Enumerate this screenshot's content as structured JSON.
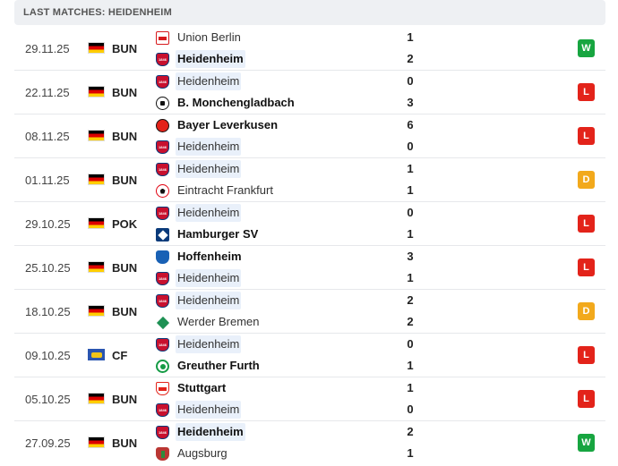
{
  "header": {
    "title": "LAST MATCHES: HEIDENHEIM"
  },
  "matches": [
    {
      "date": "29.11.25",
      "flag": "de",
      "competition": "BUN",
      "home": {
        "name": "Union Berlin",
        "crest": "union-berlin-crest",
        "bold": false,
        "highlight": false,
        "score": "1"
      },
      "away": {
        "name": "Heidenheim",
        "crest": "heidenheim-crest",
        "bold": true,
        "highlight": true,
        "score": "2"
      },
      "result": "W"
    },
    {
      "date": "22.11.25",
      "flag": "de",
      "competition": "BUN",
      "home": {
        "name": "Heidenheim",
        "crest": "heidenheim-crest",
        "bold": false,
        "highlight": true,
        "score": "0"
      },
      "away": {
        "name": "B. Monchengladbach",
        "crest": "gladbach-crest",
        "bold": true,
        "highlight": false,
        "score": "3"
      },
      "result": "L"
    },
    {
      "date": "08.11.25",
      "flag": "de",
      "competition": "BUN",
      "home": {
        "name": "Bayer Leverkusen",
        "crest": "leverkusen-crest",
        "bold": true,
        "highlight": false,
        "score": "6"
      },
      "away": {
        "name": "Heidenheim",
        "crest": "heidenheim-crest",
        "bold": false,
        "highlight": true,
        "score": "0"
      },
      "result": "L"
    },
    {
      "date": "01.11.25",
      "flag": "de",
      "competition": "BUN",
      "home": {
        "name": "Heidenheim",
        "crest": "heidenheim-crest",
        "bold": false,
        "highlight": true,
        "score": "1"
      },
      "away": {
        "name": "Eintracht Frankfurt",
        "crest": "frankfurt-crest",
        "bold": false,
        "highlight": false,
        "score": "1"
      },
      "result": "D"
    },
    {
      "date": "29.10.25",
      "flag": "de",
      "competition": "POK",
      "home": {
        "name": "Heidenheim",
        "crest": "heidenheim-crest",
        "bold": false,
        "highlight": true,
        "score": "0"
      },
      "away": {
        "name": "Hamburger SV",
        "crest": "hamburg-crest",
        "bold": true,
        "highlight": false,
        "score": "1"
      },
      "result": "L"
    },
    {
      "date": "25.10.25",
      "flag": "de",
      "competition": "BUN",
      "home": {
        "name": "Hoffenheim",
        "crest": "hoffenheim-crest",
        "bold": true,
        "highlight": false,
        "score": "3"
      },
      "away": {
        "name": "Heidenheim",
        "crest": "heidenheim-crest",
        "bold": false,
        "highlight": true,
        "score": "1"
      },
      "result": "L"
    },
    {
      "date": "18.10.25",
      "flag": "de",
      "competition": "BUN",
      "home": {
        "name": "Heidenheim",
        "crest": "heidenheim-crest",
        "bold": false,
        "highlight": true,
        "score": "2"
      },
      "away": {
        "name": "Werder Bremen",
        "crest": "werder-crest",
        "bold": false,
        "highlight": false,
        "score": "2"
      },
      "result": "D"
    },
    {
      "date": "09.10.25",
      "flag": "cf",
      "competition": "CF",
      "home": {
        "name": "Heidenheim",
        "crest": "heidenheim-crest",
        "bold": false,
        "highlight": true,
        "score": "0"
      },
      "away": {
        "name": "Greuther Furth",
        "crest": "furth-crest",
        "bold": true,
        "highlight": false,
        "score": "1"
      },
      "result": "L"
    },
    {
      "date": "05.10.25",
      "flag": "de",
      "competition": "BUN",
      "home": {
        "name": "Stuttgart",
        "crest": "stuttgart-crest",
        "bold": true,
        "highlight": false,
        "score": "1"
      },
      "away": {
        "name": "Heidenheim",
        "crest": "heidenheim-crest",
        "bold": false,
        "highlight": true,
        "score": "0"
      },
      "result": "L"
    },
    {
      "date": "27.09.25",
      "flag": "de",
      "competition": "BUN",
      "home": {
        "name": "Heidenheim",
        "crest": "heidenheim-crest",
        "bold": true,
        "highlight": true,
        "score": "2"
      },
      "away": {
        "name": "Augsburg",
        "crest": "augsburg-crest",
        "bold": false,
        "highlight": false,
        "score": "1"
      },
      "result": "W"
    }
  ]
}
